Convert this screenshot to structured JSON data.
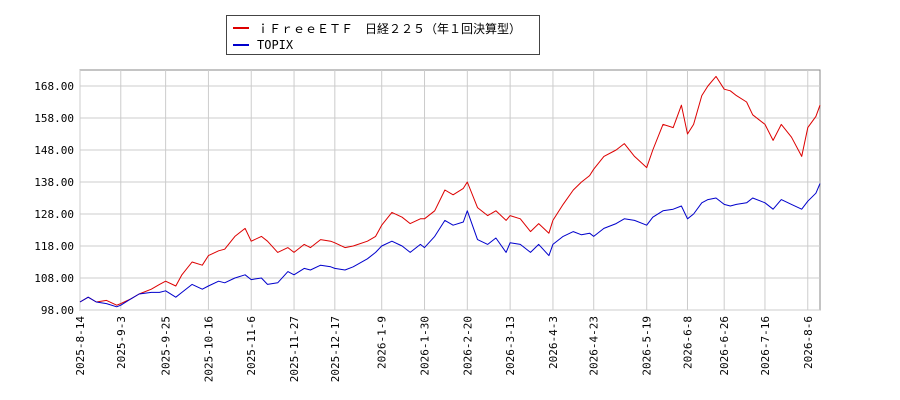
{
  "chart_data": {
    "type": "line",
    "title": "",
    "xlabel": "",
    "ylabel": "",
    "ylim": [
      98,
      173
    ],
    "yticks": [
      98,
      108,
      118,
      128,
      138,
      148,
      158,
      168
    ],
    "ytick_labels": [
      "98.00",
      "108.00",
      "118.00",
      "128.00",
      "138.00",
      "148.00",
      "158.00",
      "168.00"
    ],
    "xlim": [
      "2025-08-14",
      "2026-08-12"
    ],
    "xticks": [
      "2025-8-14",
      "2025-9-3",
      "2025-9-25",
      "2025-10-16",
      "2025-11-6",
      "2025-11-27",
      "2025-12-17",
      "2026-1-9",
      "2026-1-30",
      "2026-2-20",
      "2026-3-13",
      "2026-4-3",
      "2026-4-23",
      "2026-5-19",
      "2026-6-8",
      "2026-6-26",
      "2026-7-16",
      "2026-8-6"
    ],
    "grid": true,
    "legend_position": "top",
    "series": [
      {
        "name": "ｉＦｒｅｅＥＴＦ　日経２２５（年１回決算型）",
        "color": "#dd0000",
        "x": [
          "2025-08-14",
          "2025-08-18",
          "2025-08-22",
          "2025-08-27",
          "2025-09-01",
          "2025-09-03",
          "2025-09-08",
          "2025-09-12",
          "2025-09-18",
          "2025-09-22",
          "2025-09-25",
          "2025-09-30",
          "2025-10-03",
          "2025-10-08",
          "2025-10-13",
          "2025-10-16",
          "2025-10-21",
          "2025-10-24",
          "2025-10-29",
          "2025-11-03",
          "2025-11-06",
          "2025-11-11",
          "2025-11-14",
          "2025-11-19",
          "2025-11-24",
          "2025-11-27",
          "2025-12-02",
          "2025-12-05",
          "2025-12-10",
          "2025-12-15",
          "2025-12-17",
          "2025-12-22",
          "2025-12-26",
          "2026-01-02",
          "2026-01-06",
          "2026-01-09",
          "2026-01-14",
          "2026-01-19",
          "2026-01-23",
          "2026-01-28",
          "2026-01-30",
          "2026-02-04",
          "2026-02-09",
          "2026-02-13",
          "2026-02-18",
          "2026-02-20",
          "2026-02-25",
          "2026-03-02",
          "2026-03-06",
          "2026-03-11",
          "2026-03-13",
          "2026-03-18",
          "2026-03-23",
          "2026-03-27",
          "2026-04-01",
          "2026-04-03",
          "2026-04-08",
          "2026-04-13",
          "2026-04-17",
          "2026-04-21",
          "2026-04-23",
          "2026-04-28",
          "2026-05-04",
          "2026-05-08",
          "2026-05-13",
          "2026-05-19",
          "2026-05-22",
          "2026-05-27",
          "2026-06-01",
          "2026-06-05",
          "2026-06-08",
          "2026-06-11",
          "2026-06-15",
          "2026-06-18",
          "2026-06-22",
          "2026-06-26",
          "2026-06-29",
          "2026-07-02",
          "2026-07-07",
          "2026-07-10",
          "2026-07-16",
          "2026-07-20",
          "2026-07-24",
          "2026-07-29",
          "2026-08-03",
          "2026-08-06",
          "2026-08-10",
          "2026-08-12"
        ],
        "values": [
          100.5,
          102.0,
          100.5,
          101.0,
          99.5,
          100.0,
          101.5,
          103.0,
          104.5,
          106.0,
          107.0,
          105.5,
          109.0,
          113.0,
          112.0,
          115.0,
          116.5,
          117.0,
          121.0,
          123.5,
          119.5,
          121.0,
          119.5,
          116.0,
          117.5,
          116.0,
          118.5,
          117.5,
          120.0,
          119.5,
          119.0,
          117.5,
          118.0,
          119.5,
          121.0,
          124.5,
          128.5,
          127.0,
          125.0,
          126.5,
          126.5,
          129.0,
          135.5,
          134.0,
          136.0,
          138.0,
          130.0,
          127.5,
          129.0,
          126.0,
          127.5,
          126.5,
          122.5,
          125.0,
          122.0,
          126.0,
          131.0,
          135.5,
          138.0,
          140.0,
          142.0,
          146.0,
          148.0,
          150.0,
          146.0,
          142.5,
          148.0,
          156.0,
          155.0,
          162.0,
          153.0,
          156.0,
          165.0,
          168.0,
          171.0,
          167.0,
          166.5,
          165.0,
          163.0,
          159.0,
          156.0,
          151.0,
          156.0,
          152.0,
          146.0,
          155.0,
          158.5,
          162.0
        ]
      },
      {
        "name": "TOPIX",
        "color": "#0000cc",
        "x": [
          "2025-08-14",
          "2025-08-18",
          "2025-08-22",
          "2025-08-27",
          "2025-09-01",
          "2025-09-03",
          "2025-09-08",
          "2025-09-12",
          "2025-09-18",
          "2025-09-22",
          "2025-09-25",
          "2025-09-30",
          "2025-10-03",
          "2025-10-08",
          "2025-10-13",
          "2025-10-16",
          "2025-10-21",
          "2025-10-24",
          "2025-10-29",
          "2025-11-03",
          "2025-11-06",
          "2025-11-11",
          "2025-11-14",
          "2025-11-19",
          "2025-11-24",
          "2025-11-27",
          "2025-12-02",
          "2025-12-05",
          "2025-12-10",
          "2025-12-15",
          "2025-12-17",
          "2025-12-22",
          "2025-12-26",
          "2026-01-02",
          "2026-01-06",
          "2026-01-09",
          "2026-01-14",
          "2026-01-19",
          "2026-01-23",
          "2026-01-28",
          "2026-01-30",
          "2026-02-04",
          "2026-02-09",
          "2026-02-13",
          "2026-02-18",
          "2026-02-20",
          "2026-02-25",
          "2026-03-02",
          "2026-03-06",
          "2026-03-11",
          "2026-03-13",
          "2026-03-18",
          "2026-03-23",
          "2026-03-27",
          "2026-04-01",
          "2026-04-03",
          "2026-04-08",
          "2026-04-13",
          "2026-04-17",
          "2026-04-21",
          "2026-04-23",
          "2026-04-28",
          "2026-05-04",
          "2026-05-08",
          "2026-05-13",
          "2026-05-19",
          "2026-05-22",
          "2026-05-27",
          "2026-06-01",
          "2026-06-05",
          "2026-06-08",
          "2026-06-11",
          "2026-06-15",
          "2026-06-18",
          "2026-06-22",
          "2026-06-26",
          "2026-06-29",
          "2026-07-02",
          "2026-07-07",
          "2026-07-10",
          "2026-07-16",
          "2026-07-20",
          "2026-07-24",
          "2026-07-29",
          "2026-08-03",
          "2026-08-06",
          "2026-08-10",
          "2026-08-12"
        ],
        "values": [
          100.5,
          102.0,
          100.5,
          100.0,
          99.0,
          99.5,
          101.5,
          103.0,
          103.5,
          103.5,
          104.0,
          102.0,
          103.5,
          106.0,
          104.5,
          105.5,
          107.0,
          106.5,
          108.0,
          109.0,
          107.5,
          108.0,
          106.0,
          106.5,
          110.0,
          109.0,
          111.0,
          110.5,
          112.0,
          111.5,
          111.0,
          110.5,
          111.5,
          114.0,
          116.0,
          118.0,
          119.5,
          118.0,
          116.0,
          118.5,
          117.5,
          121.0,
          126.0,
          124.5,
          125.5,
          129.0,
          120.0,
          118.5,
          120.5,
          116.0,
          119.0,
          118.5,
          116.0,
          118.5,
          115.0,
          118.5,
          121.0,
          122.5,
          121.5,
          122.0,
          121.0,
          123.5,
          125.0,
          126.5,
          126.0,
          124.5,
          127.0,
          129.0,
          129.5,
          130.5,
          126.5,
          128.0,
          131.5,
          132.5,
          133.0,
          131.0,
          130.5,
          131.0,
          131.5,
          133.0,
          131.5,
          129.5,
          132.5,
          131.0,
          129.5,
          132.0,
          134.5,
          137.5
        ]
      }
    ]
  }
}
